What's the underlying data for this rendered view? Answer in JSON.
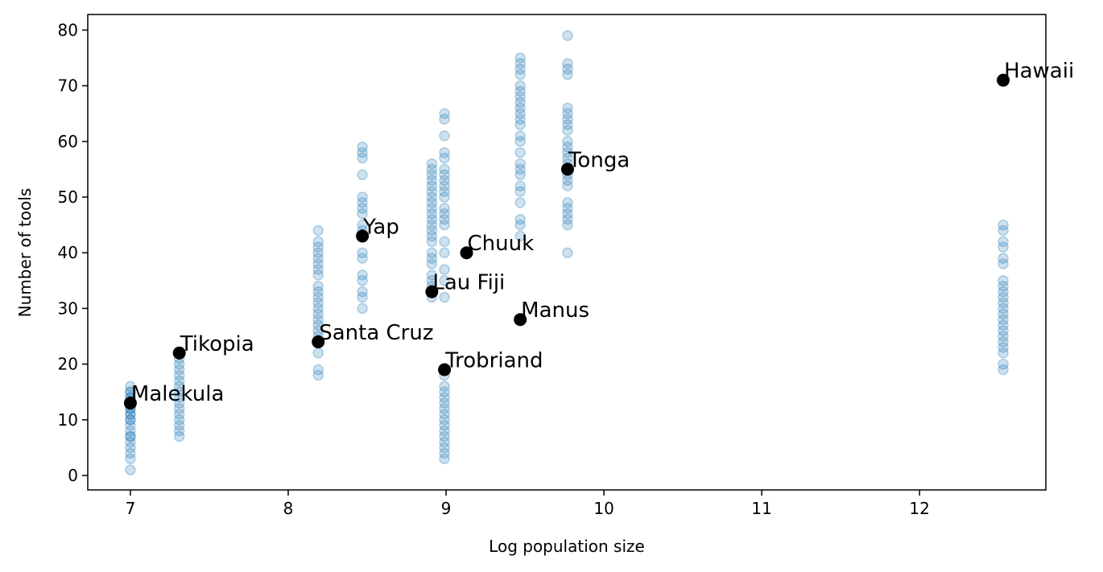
{
  "chart_data": {
    "type": "scatter",
    "xlabel": "Log population size",
    "ylabel": "Number of tools",
    "xlim": [
      6.73,
      12.8
    ],
    "ylim": [
      -2.6,
      82.8
    ],
    "xticks": [
      7,
      8,
      9,
      10,
      11,
      12
    ],
    "yticks": [
      0,
      10,
      20,
      30,
      40,
      50,
      60,
      70,
      80
    ],
    "grid": false,
    "colors": {
      "samples": "#1f77b4",
      "observed": "#000000"
    },
    "observed": [
      {
        "name": "Malekula",
        "x": 7.0,
        "y": 13
      },
      {
        "name": "Tikopia",
        "x": 7.31,
        "y": 22
      },
      {
        "name": "Santa Cruz",
        "x": 8.19,
        "y": 24
      },
      {
        "name": "Yap",
        "x": 8.47,
        "y": 43
      },
      {
        "name": "Lau Fiji",
        "x": 8.91,
        "y": 33
      },
      {
        "name": "Trobriand",
        "x": 8.99,
        "y": 19
      },
      {
        "name": "Chuuk",
        "x": 9.13,
        "y": 40
      },
      {
        "name": "Manus",
        "x": 9.47,
        "y": 28
      },
      {
        "name": "Tonga",
        "x": 9.77,
        "y": 55
      },
      {
        "name": "Hawaii",
        "x": 12.53,
        "y": 71
      }
    ],
    "samples": [
      {
        "x": 7.0,
        "y": [
          1,
          3,
          4,
          5,
          6,
          7,
          7,
          8,
          9,
          10,
          10,
          11,
          11,
          12,
          12,
          13,
          13,
          14,
          14,
          15,
          15,
          16
        ]
      },
      {
        "x": 7.31,
        "y": [
          7,
          8,
          9,
          10,
          11,
          12,
          13,
          14,
          15,
          16,
          17,
          18,
          19,
          20,
          21
        ]
      },
      {
        "x": 8.19,
        "y": [
          18,
          19,
          22,
          24,
          25,
          26,
          27,
          28,
          29,
          30,
          31,
          32,
          33,
          34,
          36,
          37,
          38,
          39,
          40,
          41,
          42,
          44
        ]
      },
      {
        "x": 8.47,
        "y": [
          30,
          32,
          33,
          35,
          36,
          39,
          40,
          43,
          44,
          45,
          47,
          48,
          49,
          50,
          54,
          57,
          58,
          59
        ]
      },
      {
        "x": 8.91,
        "y": [
          32,
          33,
          34,
          35,
          36,
          38,
          39,
          40,
          42,
          43,
          44,
          45,
          46,
          47,
          48,
          49,
          50,
          51,
          52,
          53,
          54,
          55,
          56
        ]
      },
      {
        "x": 8.99,
        "y": [
          3,
          4,
          5,
          6,
          7,
          8,
          9,
          10,
          11,
          12,
          13,
          14,
          15,
          16,
          18
        ]
      },
      {
        "x": 8.99,
        "y": [
          32,
          35,
          37,
          40,
          42,
          45,
          46,
          47,
          48,
          50,
          51,
          52,
          53,
          54,
          55,
          57,
          58,
          61,
          64,
          65
        ]
      },
      {
        "x": 9.47,
        "y": [
          43,
          45,
          46,
          49,
          51,
          52,
          54,
          55,
          56,
          58,
          60,
          61,
          63,
          64,
          65,
          66,
          67,
          68,
          69,
          70,
          72,
          73,
          74,
          75
        ]
      },
      {
        "x": 9.77,
        "y": [
          40,
          45,
          46,
          47,
          48,
          49,
          52,
          53,
          54,
          55,
          56,
          57,
          58,
          59,
          60,
          62,
          63,
          64,
          65,
          66,
          72,
          73,
          74,
          79
        ]
      },
      {
        "x": 12.53,
        "y": [
          19,
          20,
          22,
          23,
          24,
          25,
          26,
          27,
          28,
          29,
          30,
          31,
          32,
          33,
          34,
          35,
          38,
          39,
          41,
          42,
          44,
          45
        ]
      }
    ]
  }
}
